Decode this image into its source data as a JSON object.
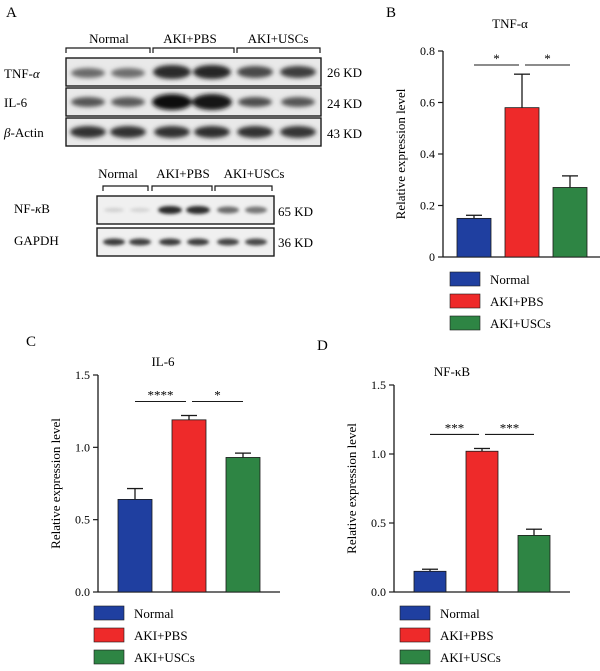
{
  "panel_labels": {
    "a": "A",
    "b": "B",
    "c": "C",
    "d": "D"
  },
  "blot_top": {
    "groups": [
      "Normal",
      "AKI+PBS",
      "AKI+USCs"
    ],
    "rows": [
      {
        "label": "TNF-",
        "label_greek": "α",
        "size": "26 KD"
      },
      {
        "label": "IL-6",
        "label_greek": "",
        "size": "24 KD"
      },
      {
        "label": "-Actin",
        "label_greek": "β",
        "size": "43 KD"
      }
    ]
  },
  "blot_bottom": {
    "groups": [
      "Normal",
      "AKI+PBS",
      "AKI+USCs"
    ],
    "rows": [
      {
        "label": "NF-",
        "label_greek": "κ",
        "label_tail": "B",
        "size": "65 KD"
      },
      {
        "label": "GAPDH",
        "label_greek": "",
        "label_tail": "",
        "size": "36 KD"
      }
    ]
  },
  "colors": {
    "normal": "#1f3fa0",
    "pbs": "#ee2a2a",
    "uscs": "#2e8544",
    "axis": "#1a1a1a"
  },
  "legend": [
    "Normal",
    "AKI+PBS",
    "AKI+USCs"
  ],
  "chart_data": [
    {
      "id": "B",
      "type": "bar",
      "title": "TNF-α",
      "ylabel": "Relative expression level",
      "categories": [
        "Normal",
        "AKI+PBS",
        "AKI+USCs"
      ],
      "values": [
        0.15,
        0.58,
        0.27
      ],
      "errors": [
        0.012,
        0.13,
        0.045
      ],
      "ylim": [
        0,
        0.8
      ],
      "yticks": [
        "0",
        "0.2",
        "0.4",
        "0.6",
        "0.8"
      ],
      "significance": [
        {
          "from": 0,
          "to": 1,
          "label": "*"
        },
        {
          "from": 1,
          "to": 2,
          "label": "*"
        }
      ]
    },
    {
      "id": "C",
      "type": "bar",
      "title": "IL-6",
      "ylabel": "Relative expression level",
      "categories": [
        "Normal",
        "AKI+PBS",
        "AKI+USCs"
      ],
      "values": [
        0.64,
        1.19,
        0.93
      ],
      "errors": [
        0.075,
        0.03,
        0.03
      ],
      "ylim": [
        0,
        1.5
      ],
      "yticks": [
        "0.0",
        "0.5",
        "1.0",
        "1.5"
      ],
      "significance": [
        {
          "from": 0,
          "to": 1,
          "label": "****"
        },
        {
          "from": 1,
          "to": 2,
          "label": "*"
        }
      ]
    },
    {
      "id": "D",
      "type": "bar",
      "title": "NF-κB",
      "ylabel": "Relative expression level",
      "categories": [
        "Normal",
        "AKI+PBS",
        "AKI+USCs"
      ],
      "values": [
        0.15,
        1.02,
        0.41
      ],
      "errors": [
        0.015,
        0.02,
        0.045
      ],
      "ylim": [
        0,
        1.5
      ],
      "yticks": [
        "0.0",
        "0.5",
        "1.0",
        "1.5"
      ],
      "significance": [
        {
          "from": 0,
          "to": 1,
          "label": "***"
        },
        {
          "from": 1,
          "to": 2,
          "label": "***"
        }
      ]
    }
  ]
}
